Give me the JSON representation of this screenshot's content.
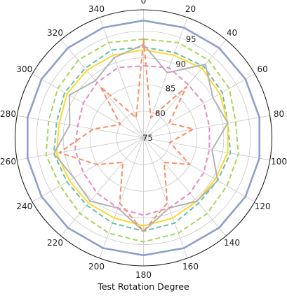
{
  "chart_data": {
    "type": "line",
    "polar": true,
    "xlabel": "Test Rotation Degree",
    "angle_ticks": [
      "0",
      "20",
      "40",
      "60",
      "80",
      "100",
      "120",
      "140",
      "160",
      "180",
      "200",
      "220",
      "240",
      "260",
      "280",
      "300",
      "320",
      "340"
    ],
    "radial_ticks": [
      "75",
      "80",
      "85",
      "90",
      "95"
    ],
    "rlim": [
      75,
      99
    ],
    "grid": true,
    "angles": [
      0,
      20,
      40,
      60,
      80,
      100,
      120,
      140,
      160,
      180,
      200,
      220,
      240,
      260,
      280,
      300,
      320,
      340
    ],
    "series": [
      {
        "color": "#8f9fcc",
        "dash": "solid",
        "width": 2.6,
        "values": [
          97,
          97,
          97,
          97,
          97,
          97,
          97,
          97,
          97,
          97,
          97,
          97,
          97,
          97,
          97,
          97,
          97,
          97
        ]
      },
      {
        "color": "#a6d65a",
        "dash": "dashed",
        "width": 2.0,
        "values": [
          93.5,
          94,
          94,
          93.5,
          92.5,
          93,
          93,
          93.5,
          94,
          94.5,
          94,
          93.5,
          93,
          93.5,
          93,
          93.5,
          94,
          94
        ]
      },
      {
        "color": "#66c2a5",
        "dash": "dashed",
        "width": 2.0,
        "values": [
          92,
          92,
          92.5,
          92,
          91,
          91.5,
          91,
          91,
          92,
          92.5,
          92,
          91.5,
          91.5,
          92,
          91.5,
          92,
          92,
          92.5
        ]
      },
      {
        "color": "#ffd92f",
        "dash": "solid",
        "width": 2.0,
        "values": [
          91.5,
          91.5,
          92,
          91.5,
          91,
          91,
          90.5,
          90.5,
          91,
          91.5,
          91,
          91,
          91,
          91.5,
          91,
          91.5,
          91.5,
          91.5
        ]
      },
      {
        "color": "#b3b3b3",
        "dash": "solid",
        "width": 2.0,
        "values": [
          92.5,
          88,
          93,
          90,
          91,
          88,
          91,
          90.5,
          89,
          92.5,
          89,
          90.5,
          90,
          92,
          89,
          91,
          89,
          91
        ]
      },
      {
        "color": "#e78ac3",
        "dash": "dashed",
        "width": 2.0,
        "values": [
          88.5,
          89,
          88,
          88,
          87.5,
          87.5,
          88,
          88.5,
          89,
          89.5,
          89,
          88.5,
          88,
          88,
          87.5,
          88,
          88.5,
          89
        ]
      },
      {
        "color": "#fc8d62",
        "dash": "dashed",
        "width": 2.0,
        "values": [
          93.5,
          79,
          87.5,
          80.5,
          84.5,
          80,
          85,
          81,
          88,
          92.5,
          88,
          81,
          85,
          91,
          84.5,
          80,
          87.5,
          79
        ]
      }
    ]
  }
}
